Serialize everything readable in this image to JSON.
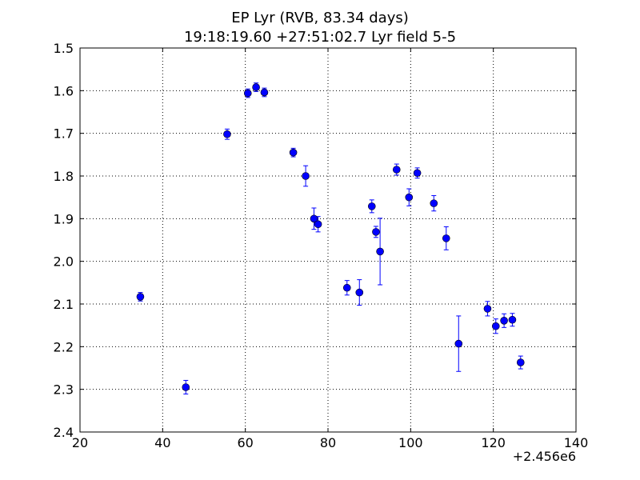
{
  "chart_data": {
    "type": "scatter",
    "title": "EP Lyr (RVB, 83.34 days)",
    "subtitle": "19:18:19.60 +27:51:02.7 Lyr field 5-5",
    "xlabel": "",
    "ylabel": "",
    "x_offset_label": "+2.456e6",
    "xlim": [
      20,
      140
    ],
    "ylim": [
      1.5,
      2.4
    ],
    "y_inverted": true,
    "grid": true,
    "x_ticks": [
      "20",
      "40",
      "60",
      "80",
      "100",
      "120",
      "140"
    ],
    "y_ticks": [
      "1.5",
      "1.6",
      "1.7",
      "1.8",
      "1.9",
      "2.0",
      "2.1",
      "2.2",
      "2.3",
      "2.4"
    ],
    "marker_color": "#0000ff",
    "points": [
      {
        "x": 34.6,
        "y": 2.083,
        "err": 0.01
      },
      {
        "x": 45.6,
        "y": 2.295,
        "err": 0.016
      },
      {
        "x": 55.6,
        "y": 1.702,
        "err": 0.012
      },
      {
        "x": 60.6,
        "y": 1.606,
        "err": 0.01
      },
      {
        "x": 62.6,
        "y": 1.592,
        "err": 0.01
      },
      {
        "x": 64.6,
        "y": 1.604,
        "err": 0.01
      },
      {
        "x": 71.6,
        "y": 1.745,
        "err": 0.01
      },
      {
        "x": 74.6,
        "y": 1.8,
        "err": 0.024
      },
      {
        "x": 76.6,
        "y": 1.9,
        "err": 0.025
      },
      {
        "x": 77.6,
        "y": 1.913,
        "err": 0.018
      },
      {
        "x": 84.6,
        "y": 2.062,
        "err": 0.017
      },
      {
        "x": 87.6,
        "y": 2.073,
        "err": 0.03
      },
      {
        "x": 90.6,
        "y": 1.871,
        "err": 0.015
      },
      {
        "x": 91.6,
        "y": 1.931,
        "err": 0.013
      },
      {
        "x": 92.6,
        "y": 1.977,
        "err": 0.078
      },
      {
        "x": 96.6,
        "y": 1.785,
        "err": 0.013
      },
      {
        "x": 99.6,
        "y": 1.85,
        "err": 0.02
      },
      {
        "x": 101.6,
        "y": 1.793,
        "err": 0.012
      },
      {
        "x": 105.6,
        "y": 1.864,
        "err": 0.018
      },
      {
        "x": 108.6,
        "y": 1.946,
        "err": 0.027
      },
      {
        "x": 111.6,
        "y": 2.193,
        "err": 0.065
      },
      {
        "x": 118.6,
        "y": 2.111,
        "err": 0.017
      },
      {
        "x": 120.6,
        "y": 2.152,
        "err": 0.017
      },
      {
        "x": 122.6,
        "y": 2.139,
        "err": 0.016
      },
      {
        "x": 124.6,
        "y": 2.137,
        "err": 0.015
      },
      {
        "x": 126.6,
        "y": 2.237,
        "err": 0.015
      }
    ]
  }
}
